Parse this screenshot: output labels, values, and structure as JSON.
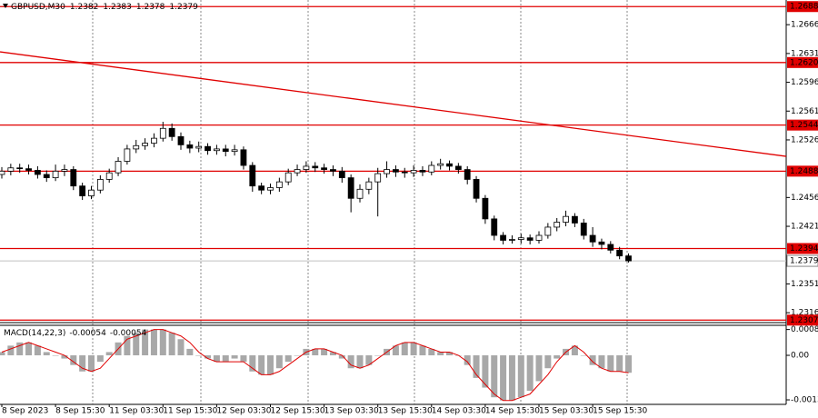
{
  "chart_data": [
    {
      "type": "candlestick",
      "title": "GBPUSD,M30",
      "last_bar": [
        1.2382,
        1.2383,
        1.2378,
        1.2379
      ],
      "categories": [
        "8 Sep 2023",
        null,
        null,
        null,
        null,
        null,
        "8 Sep 15:30",
        null,
        null,
        null,
        null,
        null,
        "11 Sep 03:30",
        null,
        null,
        null,
        null,
        null,
        "11 Sep 15:30",
        null,
        null,
        null,
        null,
        null,
        "12 Sep 03:30",
        null,
        null,
        null,
        null,
        null,
        "12 Sep 15:30",
        null,
        null,
        null,
        null,
        null,
        "13 Sep 03:30",
        null,
        null,
        null,
        null,
        null,
        "13 Sep 15:30",
        null,
        null,
        null,
        null,
        null,
        "14 Sep 03:30",
        null,
        null,
        null,
        null,
        null,
        "14 Sep 15:30",
        null,
        null,
        null,
        null,
        null,
        "15 Sep 03:30",
        null,
        null,
        null,
        null,
        null,
        "15 Sep 15:30",
        null,
        null,
        null,
        null
      ],
      "open": [
        1.2484,
        1.2488,
        1.2492,
        1.2491,
        1.2489,
        1.2484,
        1.248,
        1.2488,
        1.249,
        1.247,
        1.2458,
        1.2465,
        1.2478,
        1.2486,
        1.25,
        1.2515,
        1.2519,
        1.2522,
        1.2528,
        1.254,
        1.253,
        1.252,
        1.2516,
        1.2518,
        1.2513,
        1.2515,
        1.2512,
        1.2514,
        1.2495,
        1.247,
        1.2465,
        1.2468,
        1.2475,
        1.2486,
        1.249,
        1.2494,
        1.2492,
        1.249,
        1.2488,
        1.248,
        1.2455,
        1.2466,
        1.2475,
        1.2485,
        1.249,
        1.2487,
        1.2486,
        1.2489,
        1.2487,
        1.2495,
        1.2497,
        1.2494,
        1.249,
        1.2478,
        1.2455,
        1.243,
        1.241,
        1.2404,
        1.2405,
        1.2407,
        1.2404,
        1.241,
        1.242,
        1.2426,
        1.2433,
        1.2425,
        1.241,
        1.2402,
        1.2399,
        1.2392,
        1.2385
      ],
      "high": [
        1.2493,
        1.2497,
        1.2497,
        1.2496,
        1.2494,
        1.2489,
        1.2496,
        1.2496,
        1.2494,
        1.2474,
        1.247,
        1.2483,
        1.2491,
        1.2505,
        1.252,
        1.2526,
        1.2528,
        1.2534,
        1.2548,
        1.2546,
        1.2535,
        1.2525,
        1.2524,
        1.2522,
        1.252,
        1.252,
        1.252,
        1.2518,
        1.2499,
        1.2474,
        1.2473,
        1.248,
        1.2491,
        1.2496,
        1.25,
        1.2499,
        1.2497,
        1.2495,
        1.2493,
        1.2484,
        1.2472,
        1.248,
        1.2492,
        1.25,
        1.2495,
        1.2492,
        1.2495,
        1.2494,
        1.25,
        1.2503,
        1.2501,
        1.2498,
        1.2494,
        1.2482,
        1.2459,
        1.2434,
        1.2414,
        1.241,
        1.2412,
        1.2411,
        1.2415,
        1.2425,
        1.2431,
        1.244,
        1.2437,
        1.243,
        1.242,
        1.2406,
        1.2403,
        1.2396,
        1.2388
      ],
      "low": [
        1.2479,
        1.2483,
        1.2486,
        1.2484,
        1.2479,
        1.2475,
        1.2476,
        1.2482,
        1.2465,
        1.2453,
        1.2454,
        1.2461,
        1.2474,
        1.2482,
        1.2496,
        1.251,
        1.2514,
        1.2517,
        1.2524,
        1.2525,
        1.2514,
        1.251,
        1.2511,
        1.2508,
        1.2508,
        1.2506,
        1.2507,
        1.249,
        1.2463,
        1.246,
        1.246,
        1.2463,
        1.2471,
        1.2482,
        1.2486,
        1.2487,
        1.2485,
        1.2482,
        1.2474,
        1.2438,
        1.245,
        1.246,
        1.2433,
        1.248,
        1.2481,
        1.248,
        1.2481,
        1.2482,
        1.2483,
        1.249,
        1.2489,
        1.2485,
        1.2472,
        1.245,
        1.2424,
        1.2404,
        1.2399,
        1.24,
        1.24,
        1.2399,
        1.24,
        1.2406,
        1.2415,
        1.2421,
        1.242,
        1.2405,
        1.2396,
        1.2393,
        1.2388,
        1.2381,
        1.2377
      ],
      "close": [
        1.2488,
        1.2492,
        1.2491,
        1.2489,
        1.2484,
        1.248,
        1.2488,
        1.249,
        1.247,
        1.2458,
        1.2465,
        1.2478,
        1.2486,
        1.25,
        1.2515,
        1.2519,
        1.2522,
        1.2528,
        1.254,
        1.253,
        1.252,
        1.2516,
        1.2518,
        1.2513,
        1.2515,
        1.2512,
        1.2514,
        1.2495,
        1.247,
        1.2465,
        1.2468,
        1.2475,
        1.2486,
        1.249,
        1.2494,
        1.2492,
        1.249,
        1.2488,
        1.248,
        1.2455,
        1.2466,
        1.2475,
        1.2485,
        1.249,
        1.2487,
        1.2486,
        1.2489,
        1.2487,
        1.2495,
        1.2497,
        1.2494,
        1.249,
        1.2478,
        1.2455,
        1.243,
        1.241,
        1.2404,
        1.2405,
        1.2407,
        1.2404,
        1.241,
        1.242,
        1.2426,
        1.2433,
        1.2425,
        1.241,
        1.2402,
        1.2399,
        1.2392,
        1.2385,
        1.2379
      ],
      "color": "#000000",
      "ylim": [
        1.2304,
        1.2696
      ],
      "yticks": [
        1.2666,
        1.2631,
        1.2596,
        1.2561,
        1.2526,
        1.2456,
        1.2421,
        1.2351,
        1.2316
      ],
      "levels": [
        1.2688,
        {
          "value": 1.262,
          "label": "1.2620"
        },
        1.2544,
        1.2488,
        1.2394,
        1.2307
      ],
      "level_color": "#e00000",
      "current_price": 1.2379,
      "trendline": [
        1.2633,
        1.2506
      ]
    },
    {
      "type": "macd",
      "title": "MACD(14,22,3)",
      "last_values": [
        -0.00054,
        -0.00054
      ],
      "values": [
        0.0001,
        0.0003,
        0.0004,
        0.0004,
        0.0003,
        0.0001,
        0,
        -0.0001,
        -0.0003,
        -0.0005,
        -0.0005,
        -0.0002,
        0.0001,
        0.0004,
        0.0006,
        0.0007,
        0.0008,
        0.0008,
        0.0008,
        0.0007,
        0.0005,
        0.0002,
        0,
        -0.0001,
        -0.0002,
        -0.0002,
        -0.0001,
        -0.0002,
        -0.0005,
        -0.0006,
        -0.0006,
        -0.0004,
        -0.0002,
        0,
        0.0002,
        0.0002,
        0.0002,
        0.0001,
        -0.0001,
        -0.0004,
        -0.0004,
        -0.0003,
        0,
        0.0002,
        0.0003,
        0.0004,
        0.0004,
        0.0003,
        0.0002,
        0.0001,
        0.0001,
        0,
        -0.0003,
        -0.0007,
        -0.001,
        -0.0013,
        -0.0014,
        -0.0014,
        -0.0013,
        -0.0011,
        -0.0008,
        -0.0004,
        -0.0001,
        0.0002,
        0.0003,
        0,
        -0.0003,
        -0.0004,
        -0.0005,
        -0.0005,
        -0.00054
      ],
      "signal": [
        0.0001,
        0.0002,
        0.0003,
        0.0004,
        0.0003,
        0.0002,
        0.0001,
        0,
        -0.0002,
        -0.0004,
        -0.0005,
        -0.0004,
        -0.0001,
        0.0002,
        0.0005,
        0.0006,
        0.0007,
        0.0008,
        0.0008,
        0.0007,
        0.0006,
        0.0004,
        0.0001,
        -0.0001,
        -0.0002,
        -0.0002,
        -0.0002,
        -0.0002,
        -0.0004,
        -0.0006,
        -0.0006,
        -0.0005,
        -0.0003,
        -0.0001,
        0.0001,
        0.0002,
        0.0002,
        0.0001,
        0,
        -0.0003,
        -0.0004,
        -0.0003,
        -0.0001,
        0.0001,
        0.0003,
        0.0004,
        0.0004,
        0.0003,
        0.0002,
        0.0001,
        0.0001,
        0,
        -0.0002,
        -0.0006,
        -0.0009,
        -0.0012,
        -0.0014,
        -0.0014,
        -0.0013,
        -0.0012,
        -0.0009,
        -0.0006,
        -0.0002,
        0.0001,
        0.0003,
        0.0001,
        -0.0002,
        -0.0004,
        -0.0005,
        -0.0005,
        -0.00054
      ],
      "color": "#a8a8a8",
      "signal_color": "#e00000",
      "ylim": [
        -0.00152,
        0.00093
      ],
      "yticks": [
        0.0008,
        {
          "value": 0,
          "label": "0.00"
        },
        -0.00138
      ]
    }
  ]
}
